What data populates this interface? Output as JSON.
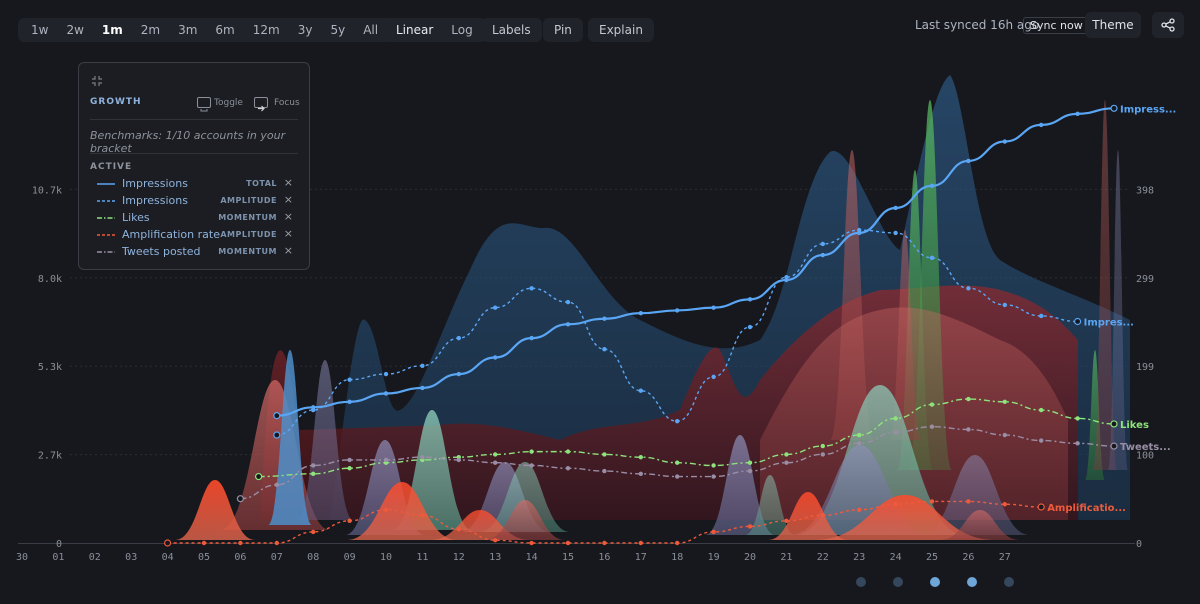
{
  "toolbar": {
    "ranges": [
      "1w",
      "2w",
      "1m",
      "2m",
      "3m",
      "6m",
      "12m",
      "3y",
      "5y",
      "All"
    ],
    "active_range": "1m",
    "scales": [
      "Linear",
      "Log"
    ],
    "labels_btn": "Labels",
    "pin_btn": "Pin",
    "explain_btn": "Explain",
    "sync_text": "Last synced 16h ago",
    "sync_btn": "Sync now",
    "theme_btn": "Theme",
    "share_icon": "share-icon"
  },
  "legend": {
    "title": "GROWTH",
    "toggle_label": "Toggle",
    "focus_label": "Focus",
    "benchmarks": "Benchmarks: 1/10 accounts in your bracket",
    "active_title": "ACTIVE",
    "close_glyph": "×",
    "items": [
      {
        "name": "Impressions",
        "mode": "TOTAL",
        "color": "#5aa6f5",
        "dash": "solid"
      },
      {
        "name": "Impressions",
        "mode": "AMPLITUDE",
        "color": "#5aa6f5",
        "dash": "dashed"
      },
      {
        "name": "Likes",
        "mode": "MOMENTUM",
        "color": "#8ee37c",
        "dash": "dashdot"
      },
      {
        "name": "Amplification rate",
        "mode": "AMPLITUDE",
        "color": "#ef5a3a",
        "dash": "dashed"
      },
      {
        "name": "Tweets posted",
        "mode": "MOMENTUM",
        "color": "#9a8ea6",
        "dash": "dashdot"
      }
    ]
  },
  "pager": {
    "count": 5,
    "active": [
      2,
      3
    ]
  },
  "chart_data": {
    "type": "line",
    "x": [
      "30",
      "01",
      "02",
      "03",
      "04",
      "05",
      "06",
      "07",
      "08",
      "09",
      "10",
      "11",
      "12",
      "13",
      "14",
      "15",
      "16",
      "17",
      "18",
      "19",
      "20",
      "21",
      "22",
      "23",
      "24",
      "25",
      "26",
      "27"
    ],
    "y_left_ticks": [
      "0",
      "2.7k",
      "5.3k",
      "8.0k",
      "10.7k"
    ],
    "y_right_ticks": [
      "0",
      "100",
      "199",
      "299",
      "398"
    ],
    "series": [
      {
        "name": "Impressions",
        "end_label": "Impress...",
        "color": "#5aa6f5",
        "points": [
          [
            7,
            4.6
          ],
          [
            8,
            4.9
          ],
          [
            9,
            5.1
          ],
          [
            10,
            5.4
          ],
          [
            11,
            5.6
          ],
          [
            12,
            6.1
          ],
          [
            13,
            6.7
          ],
          [
            14,
            7.4
          ],
          [
            15,
            7.9
          ],
          [
            16,
            8.1
          ],
          [
            17,
            8.3
          ],
          [
            18,
            8.4
          ],
          [
            19,
            8.5
          ],
          [
            20,
            8.8
          ],
          [
            21,
            9.5
          ],
          [
            22,
            10.4
          ],
          [
            23,
            11.2
          ],
          [
            24,
            12.1
          ],
          [
            25,
            12.9
          ],
          [
            26,
            13.8
          ],
          [
            27,
            14.5
          ],
          [
            28,
            15.1
          ],
          [
            29,
            15.5
          ],
          [
            30,
            15.7
          ]
        ]
      },
      {
        "name": "Impressions",
        "end_label": "Impres...",
        "color": "#5aa6f5",
        "points": [
          [
            7,
            3.9
          ],
          [
            8,
            4.8
          ],
          [
            9,
            5.9
          ],
          [
            10,
            6.1
          ],
          [
            11,
            6.4
          ],
          [
            12,
            7.4
          ],
          [
            13,
            8.5
          ],
          [
            14,
            9.2
          ],
          [
            15,
            8.7
          ],
          [
            16,
            7.0
          ],
          [
            17,
            5.5
          ],
          [
            18,
            4.4
          ],
          [
            19,
            6.0
          ],
          [
            20,
            7.8
          ],
          [
            21,
            9.6
          ],
          [
            22,
            10.8
          ],
          [
            23,
            11.3
          ],
          [
            24,
            11.2
          ],
          [
            25,
            10.3
          ],
          [
            26,
            9.2
          ],
          [
            27,
            8.6
          ],
          [
            28,
            8.2
          ],
          [
            29,
            8.0
          ]
        ]
      },
      {
        "name": "Likes",
        "end_label": "Likes",
        "color": "#8ee37c",
        "points": [
          [
            6.5,
            2.4
          ],
          [
            8,
            2.5
          ],
          [
            9,
            2.7
          ],
          [
            10,
            2.9
          ],
          [
            11,
            3.0
          ],
          [
            12,
            3.1
          ],
          [
            13,
            3.2
          ],
          [
            14,
            3.3
          ],
          [
            15,
            3.3
          ],
          [
            16,
            3.2
          ],
          [
            17,
            3.1
          ],
          [
            18,
            2.9
          ],
          [
            19,
            2.8
          ],
          [
            20,
            2.9
          ],
          [
            21,
            3.2
          ],
          [
            22,
            3.5
          ],
          [
            23,
            3.9
          ],
          [
            24,
            4.5
          ],
          [
            25,
            5.0
          ],
          [
            26,
            5.2
          ],
          [
            27,
            5.1
          ],
          [
            28,
            4.8
          ],
          [
            29,
            4.5
          ],
          [
            30,
            4.3
          ]
        ]
      },
      {
        "name": "Amplification rate",
        "end_label": "Amplificatio...",
        "color": "#ef5a3a",
        "points": [
          [
            4,
            0
          ],
          [
            5,
            0
          ],
          [
            6,
            0
          ],
          [
            7,
            0
          ],
          [
            8,
            0.4
          ],
          [
            9,
            0.8
          ],
          [
            10,
            1.2
          ],
          [
            11,
            1.0
          ],
          [
            12,
            0.5
          ],
          [
            13,
            0.1
          ],
          [
            14,
            0
          ],
          [
            15,
            0
          ],
          [
            16,
            0
          ],
          [
            17,
            0
          ],
          [
            18,
            0
          ],
          [
            19,
            0.4
          ],
          [
            20,
            0.6
          ],
          [
            21,
            0.8
          ],
          [
            22,
            1.0
          ],
          [
            23,
            1.2
          ],
          [
            24,
            1.4
          ],
          [
            25,
            1.5
          ],
          [
            26,
            1.5
          ],
          [
            27,
            1.4
          ],
          [
            28,
            1.3
          ]
        ]
      },
      {
        "name": "Tweets posted",
        "end_label": "Tweets...",
        "color": "#9a8ea6",
        "points": [
          [
            6,
            1.6
          ],
          [
            7,
            2.1
          ],
          [
            8,
            2.8
          ],
          [
            9,
            3.0
          ],
          [
            10,
            3.0
          ],
          [
            11,
            3.1
          ],
          [
            12,
            3.0
          ],
          [
            13,
            2.9
          ],
          [
            14,
            2.8
          ],
          [
            15,
            2.7
          ],
          [
            16,
            2.6
          ],
          [
            17,
            2.5
          ],
          [
            18,
            2.4
          ],
          [
            19,
            2.4
          ],
          [
            20,
            2.6
          ],
          [
            21,
            2.9
          ],
          [
            22,
            3.2
          ],
          [
            23,
            3.6
          ],
          [
            24,
            4.0
          ],
          [
            25,
            4.2
          ],
          [
            26,
            4.1
          ],
          [
            27,
            3.9
          ],
          [
            28,
            3.7
          ],
          [
            29,
            3.6
          ],
          [
            30,
            3.5
          ]
        ]
      }
    ],
    "grid": true,
    "legend": "top-left"
  }
}
